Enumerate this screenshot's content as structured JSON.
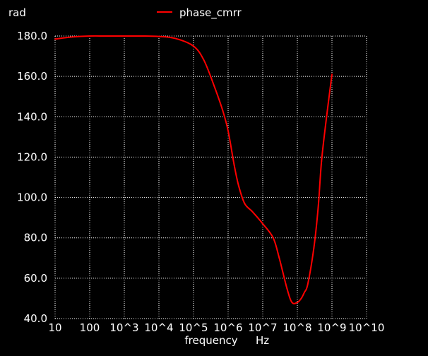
{
  "chart_data": {
    "type": "line",
    "title": "",
    "ylabel": "rad",
    "xlabel": "frequency",
    "xunit": "Hz",
    "xscale": "log",
    "xlim": [
      10,
      10000000000
    ],
    "ylim": [
      40,
      180
    ],
    "grid": true,
    "legend_position": "top-center",
    "background_color": "#000000",
    "grid_color": "#ffffff",
    "x_tick_values": [
      10,
      100,
      1000,
      10000,
      100000,
      1000000,
      10000000,
      100000000,
      1000000000,
      10000000000
    ],
    "x_tick_labels": [
      "10",
      "100",
      "10^3",
      "10^4",
      "10^5",
      "10^6",
      "10^7",
      "10^8",
      "10^9",
      "10^10"
    ],
    "y_tick_values": [
      40,
      60,
      80,
      100,
      120,
      140,
      160,
      180
    ],
    "y_tick_labels": [
      "40.0",
      "60.0",
      "80.0",
      "100.0",
      "120.0",
      "140.0",
      "160.0",
      "180.0"
    ],
    "series": [
      {
        "name": "phase_cmrr",
        "color": "#ff0000",
        "x": [
          10,
          30,
          100,
          300,
          1000,
          3000,
          10000,
          30000,
          100000,
          200000,
          400000,
          700000,
          1000000,
          1500000,
          2000000,
          3000000,
          5000000,
          10000000,
          20000000,
          30000000,
          50000000,
          70000000,
          100000000,
          130000000,
          160000000,
          200000000,
          300000000,
          400000000,
          500000000,
          700000000,
          1000000000
        ],
        "y": [
          178.5,
          179.5,
          180,
          180,
          180,
          180,
          179.8,
          178.8,
          175,
          168,
          155,
          143,
          133,
          116,
          106,
          97,
          93,
          87,
          80,
          70,
          55,
          48,
          48,
          50,
          53,
          57,
          75,
          95,
          118,
          140,
          161
        ]
      }
    ]
  }
}
